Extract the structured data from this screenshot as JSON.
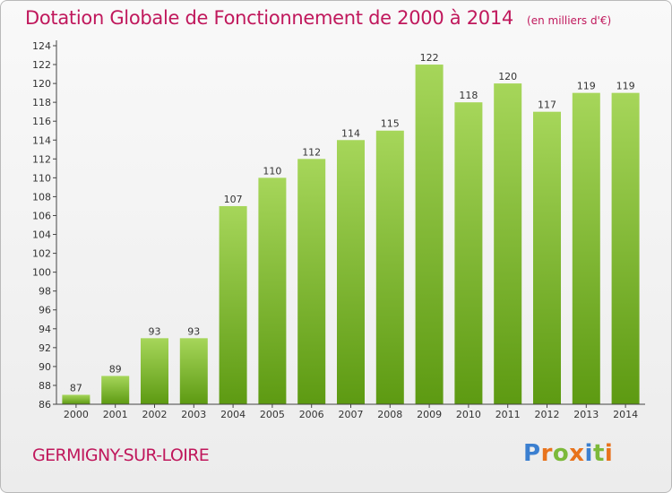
{
  "header": {
    "title": "Dotation Globale de Fonctionnement de 2000 à 2014",
    "unit": "(en milliers d'€)"
  },
  "footer": {
    "commune": "GERMIGNY-SUR-LOIRE",
    "logo_text": "Proxiti"
  },
  "colors": {
    "title": "#c0185c",
    "bar_light": "#a6d65a",
    "bar_dark": "#5d9a12",
    "logo_letters": [
      "#3b7fd0",
      "#e8731c",
      "#7cb93a",
      "#e8731c",
      "#3b7fd0",
      "#7cb93a",
      "#e8731c"
    ]
  },
  "chart_data": {
    "type": "bar",
    "title": "Dotation Globale de Fonctionnement de 2000 à 2014",
    "xlabel": "",
    "ylabel": "",
    "categories": [
      "2000",
      "2001",
      "2002",
      "2003",
      "2004",
      "2005",
      "2006",
      "2007",
      "2008",
      "2009",
      "2010",
      "2011",
      "2012",
      "2013",
      "2014"
    ],
    "values": [
      87,
      89,
      93,
      93,
      107,
      110,
      112,
      114,
      115,
      122,
      118,
      120,
      117,
      119,
      119
    ],
    "ylim": [
      86,
      124
    ],
    "ytick_step": 2,
    "grid": false,
    "legend": "none"
  }
}
